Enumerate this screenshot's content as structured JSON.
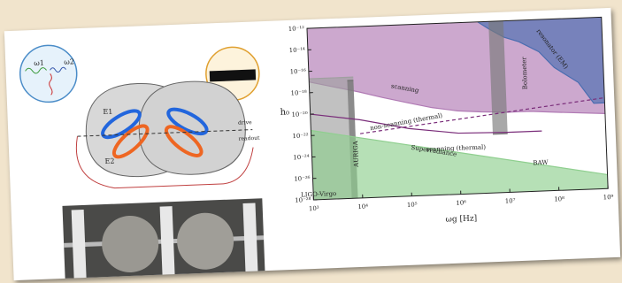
{
  "diagram": {
    "labels": [
      "E1",
      "E2",
      "ω1",
      "ω2",
      "drive",
      "readout"
    ]
  },
  "chart_data": {
    "type": "area",
    "xlabel": "ωg [Hz]",
    "ylabel": "h₀",
    "log_x": true,
    "log_y": true,
    "xlim": [
      1000,
      1000000000
    ],
    "ylim": [
      1e-28,
      1e-12
    ],
    "xticks": [
      {
        "value": 1000,
        "label": "10³"
      },
      {
        "value": 10000,
        "label": "10⁴"
      },
      {
        "value": 100000,
        "label": "10⁵"
      },
      {
        "value": 1000000,
        "label": "10⁶"
      },
      {
        "value": 10000000,
        "label": "10⁷"
      },
      {
        "value": 100000000,
        "label": "10⁸"
      },
      {
        "value": 1000000000,
        "label": "10⁹"
      }
    ],
    "yticks": [
      {
        "value": 1e-12,
        "label": "10⁻¹²"
      },
      {
        "value": 1e-14,
        "label": "10⁻¹⁴"
      },
      {
        "value": 1e-16,
        "label": "10⁻¹⁶"
      },
      {
        "value": 1e-18,
        "label": "10⁻¹⁸"
      },
      {
        "value": 1e-20,
        "label": "10⁻²⁰"
      },
      {
        "value": 1e-22,
        "label": "10⁻²²"
      },
      {
        "value": 1e-24,
        "label": "10⁻²⁴"
      },
      {
        "value": 1e-26,
        "label": "10⁻²⁶"
      },
      {
        "value": 1e-28,
        "label": "10⁻²⁸"
      }
    ],
    "series": [
      {
        "name": "scanning",
        "color": "#b07ab4",
        "fill": "top",
        "x": [
          1000,
          3000,
          10000,
          30000,
          100000,
          300000,
          1000000,
          3000000,
          10000000,
          30000000,
          100000000,
          1000000000
        ],
        "values": [
          1e-17,
          3e-18,
          8e-19,
          2e-19,
          5e-20,
          1.5e-20,
          6e-21,
          4e-21,
          3e-21,
          3e-21,
          2e-21,
          1e-21
        ]
      },
      {
        "name": "resonator (EM)",
        "color": "#4a6db0",
        "fill": "top",
        "x": [
          3000000,
          5000000,
          10000000,
          20000000,
          50000000,
          100000000,
          300000000,
          600000000,
          1000000000
        ],
        "values": [
          1e-12,
          2e-13,
          3e-14,
          1e-14,
          1e-15,
          3e-17,
          1e-18,
          1e-20,
          1e-20
        ]
      },
      {
        "name": "LIGO-Virgo",
        "color": "#a0a0a0",
        "fill": "bottom",
        "x": [
          1000,
          8000
        ],
        "values": [
          2e-17,
          2e-17
        ]
      },
      {
        "name": "AURIGA",
        "color": "#6e6e6e",
        "fill": "bottom",
        "x": [
          6000,
          8000
        ],
        "values": [
          1e-17,
          1e-17
        ]
      },
      {
        "name": "Bolometer",
        "color": "#7a7a7a",
        "fill": "top",
        "x": [
          5000000,
          10000000
        ],
        "values": [
          3e-23,
          3e-23
        ]
      },
      {
        "name": "Superradiance",
        "color": "#8fcf8f",
        "fill": "bottom",
        "x": [
          1000,
          1000000000
        ],
        "values": [
          3e-22,
          2e-27
        ]
      },
      {
        "name": "non-scanning (thermal)",
        "color": "#7a2d7a",
        "fill": "none",
        "dashed": true,
        "x": [
          10000,
          1000000000
        ],
        "values": [
          1e-22,
          3e-20
        ]
      },
      {
        "name": "scanning (thermal)",
        "color": "#7a2d7a",
        "fill": "none",
        "x": [
          1000,
          10000,
          100000,
          1000000,
          10000000,
          50000000
        ],
        "values": [
          1e-20,
          2e-21,
          2e-22,
          5e-23,
          4e-23,
          4e-23
        ]
      }
    ],
    "annotations": [
      "BAW"
    ]
  }
}
